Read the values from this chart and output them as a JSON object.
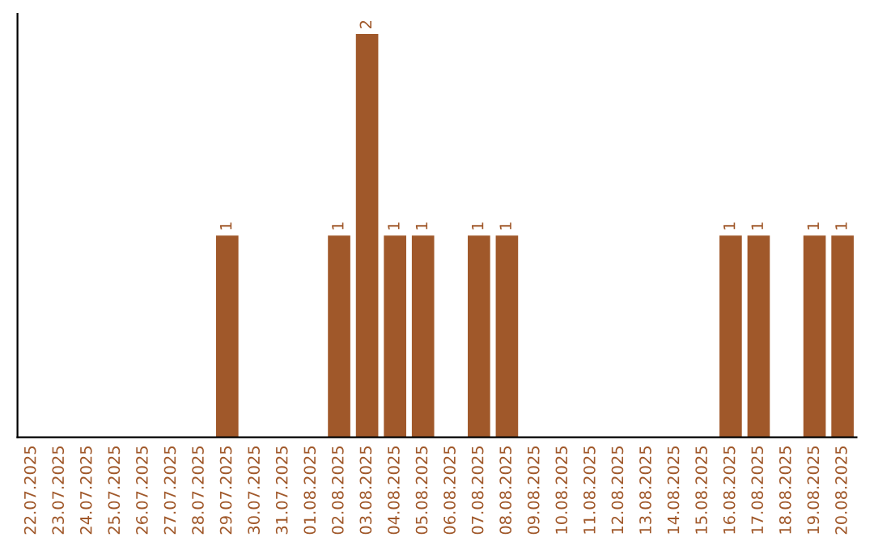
{
  "chart_data": {
    "type": "bar",
    "categories": [
      "22.07.2025",
      "23.07.2025",
      "24.07.2025",
      "25.07.2025",
      "26.07.2025",
      "27.07.2025",
      "28.07.2025",
      "29.07.2025",
      "30.07.2025",
      "31.07.2025",
      "01.08.2025",
      "02.08.2025",
      "03.08.2025",
      "04.08.2025",
      "05.08.2025",
      "06.08.2025",
      "07.08.2025",
      "08.08.2025",
      "09.08.2025",
      "10.08.2025",
      "11.08.2025",
      "12.08.2025",
      "13.08.2025",
      "14.08.2025",
      "15.08.2025",
      "16.08.2025",
      "17.08.2025",
      "18.08.2025",
      "19.08.2025",
      "20.08.2025"
    ],
    "values": [
      0,
      0,
      0,
      0,
      0,
      0,
      0,
      1,
      0,
      0,
      0,
      1,
      2,
      1,
      1,
      0,
      1,
      1,
      0,
      0,
      0,
      0,
      0,
      0,
      0,
      1,
      1,
      0,
      1,
      1
    ],
    "value_labels": [
      null,
      null,
      null,
      null,
      null,
      null,
      null,
      "1",
      null,
      null,
      null,
      "1",
      "2",
      "1",
      "1",
      null,
      "1",
      "1",
      null,
      null,
      null,
      null,
      null,
      null,
      null,
      "1",
      "1",
      null,
      "1",
      "1"
    ],
    "color": "#a0582a",
    "tick_labels": "x",
    "grid": false,
    "legend": false
  }
}
